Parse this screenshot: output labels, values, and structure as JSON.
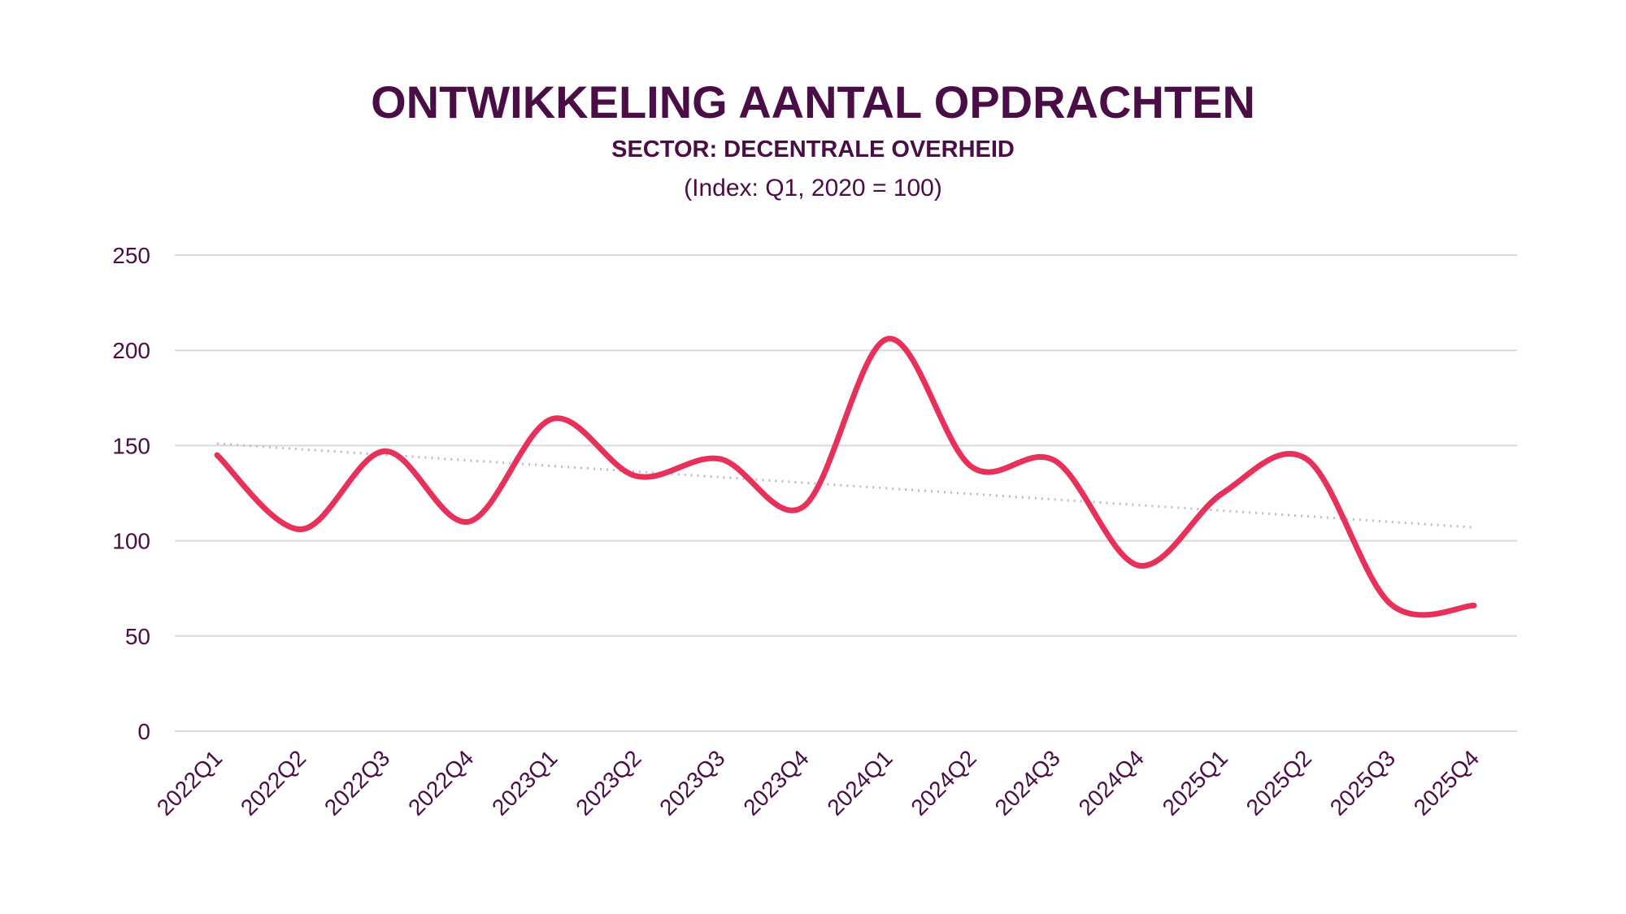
{
  "chart_data": {
    "type": "line",
    "title": "ONTWIKKELING AANTAL OPDRACHTEN",
    "subtitle": "SECTOR: DECENTRALE OVERHEID",
    "note": "(Index: Q1, 2020 = 100)",
    "xlabel": "",
    "ylabel": "",
    "ylim": [
      0,
      250
    ],
    "yticks": [
      0,
      50,
      100,
      150,
      200,
      250
    ],
    "grid": true,
    "smooth": true,
    "categories": [
      "2022Q1",
      "2022Q2",
      "2022Q3",
      "2022Q4",
      "2023Q1",
      "2023Q2",
      "2023Q3",
      "2023Q4",
      "2024Q1",
      "2024Q2",
      "2024Q3",
      "2024Q4",
      "2025Q1",
      "2025Q2",
      "2025Q3",
      "2025Q4"
    ],
    "series": [
      {
        "values": [
          145,
          106,
          147,
          110,
          164,
          134,
          143,
          118,
          206,
          139,
          142,
          87,
          125,
          143,
          67,
          66
        ],
        "color": "#e8315a"
      }
    ],
    "trendline": {
      "type": "linear",
      "start": 151,
      "end": 107,
      "color": "#b8bcd6",
      "style": "dotted"
    },
    "colors": {
      "text": "#4a0d45",
      "grid": "#d9d9d9"
    }
  }
}
